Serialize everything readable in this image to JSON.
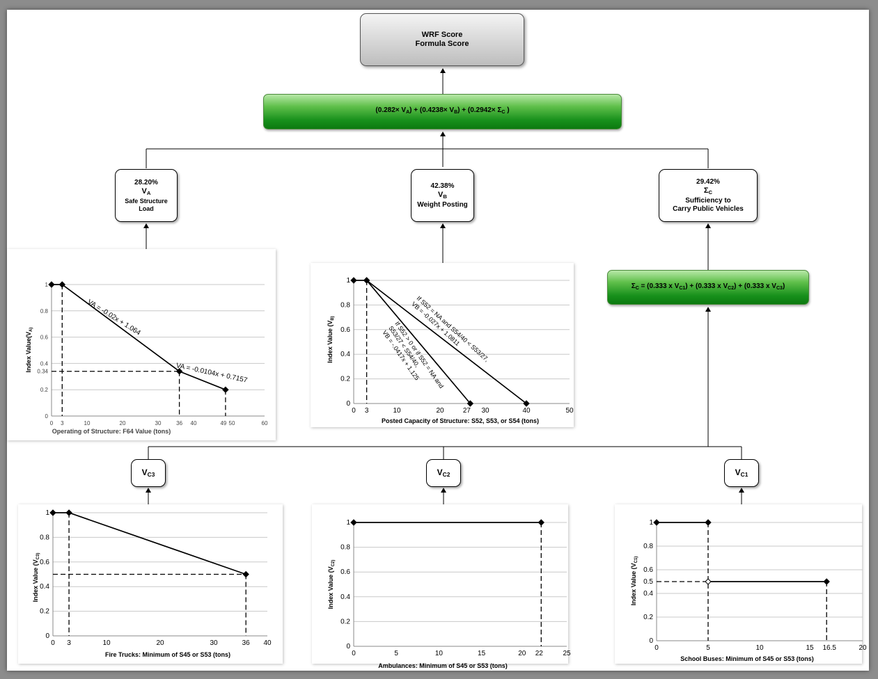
{
  "top_box": {
    "line1": "WRF Score",
    "line2": "Formula Score"
  },
  "main_formula": {
    "p1": "(0.282× V",
    "s1": "A",
    "p2": ") + (0.4238× V",
    "s2": "B",
    "p3": ") + (0.2942× Σ",
    "s3": "C",
    "p4": " )"
  },
  "box_a": {
    "pct": "28.20%",
    "sym": "V",
    "sub": "A",
    "label1": "Safe Structure",
    "label2": "Load"
  },
  "box_b": {
    "pct": "42.38%",
    "sym": "V",
    "sub": "B",
    "label1": "Weight Posting"
  },
  "box_c": {
    "pct": "29.42%",
    "sym": "Σ",
    "sub": "C",
    "label1": "Sufficiency to",
    "label2": "Carry Public Vehicles"
  },
  "sigma_formula": {
    "p1": "Σ",
    "s1": "C",
    "p2": " = (0.333 x V",
    "s2": "C1",
    "p3": ") + (0.333 x V",
    "s3": "C2",
    "p4": ") + (0.333 x V",
    "s4": "C3",
    "p5": ")"
  },
  "box_vc3": {
    "sym": "V",
    "sub": "C3"
  },
  "box_vc2": {
    "sym": "V",
    "sub": "C2"
  },
  "box_vc1": {
    "sym": "V",
    "sub": "C1"
  },
  "charts": {
    "va": {
      "ylabel": "Index Value(VA)",
      "xlabel": "Operating of Structure: F64 Value (tons)",
      "eq1": "VA = -0.02x + 1.064",
      "eq2": "VA = -0.0104x + 0.7157",
      "yticks": [
        "0",
        "0.2",
        "0.34",
        "0.4",
        "0.6",
        "0.8",
        "1"
      ],
      "xticks": [
        "0",
        "3",
        "10",
        "20",
        "30",
        "36",
        "40",
        "49",
        "50",
        "60"
      ]
    },
    "vb": {
      "ylabel": "Index Value (VB)",
      "xlabel": "Posted Capacity of Structure: S52, S53, or S54 (tons)",
      "eq1_l1": "If S52 = NA and S54/40 < S53/27,",
      "eq1_l2": "VB = -0.027x + 1.0811",
      "eq2_l1": "If S52 > 0 or if S52 = NA and",
      "eq2_l2": "S53/27 < S54/40,",
      "eq2_l3": "VB = -.0417x + 1.125",
      "yticks": [
        "0",
        "0.2",
        "0.4",
        "0.6",
        "0.8",
        "1"
      ],
      "xticks": [
        "0",
        "3",
        "10",
        "20",
        "27",
        "30",
        "40",
        "50"
      ]
    },
    "vc3": {
      "ylabel": "Index Value (VC3)",
      "xlabel": "Fire Trucks: Minimum of S45 or S53 (tons)",
      "yticks": [
        "0",
        "0.2",
        "0.4",
        "0.6",
        "0.8",
        "1"
      ],
      "xticks": [
        "0",
        "3",
        "10",
        "20",
        "30",
        "36",
        "40"
      ]
    },
    "vc2": {
      "ylabel": "Index Value (VC2)",
      "xlabel": "Ambulances: Minimum of S45 or S53 (tons)",
      "yticks": [
        "0",
        "0.2",
        "0.4",
        "0.6",
        "0.8",
        "1"
      ],
      "xticks": [
        "0",
        "5",
        "10",
        "15",
        "20",
        "22",
        "25"
      ]
    },
    "vc1": {
      "ylabel": "Index Value (VC1)",
      "xlabel": "School Buses: Minimum  of S45 or S53 (tons)",
      "yticks": [
        "0",
        "0.2",
        "0.4",
        "0.5",
        "0.6",
        "0.8",
        "1"
      ],
      "xticks": [
        "0",
        "5",
        "10",
        "15",
        "16.5",
        "20"
      ]
    }
  },
  "chart_data": [
    {
      "type": "line",
      "name": "VA",
      "x": [
        0,
        3,
        36,
        49
      ],
      "y": [
        1,
        1,
        0.34,
        0.2
      ],
      "xlim": [
        0,
        60
      ],
      "ylim": [
        0,
        1
      ]
    },
    {
      "type": "line",
      "name": "VB",
      "series": [
        {
          "x": [
            0,
            3,
            27
          ],
          "y": [
            1,
            1,
            0
          ]
        },
        {
          "x": [
            3,
            40
          ],
          "y": [
            1,
            0
          ]
        }
      ],
      "xlim": [
        0,
        50
      ],
      "ylim": [
        0,
        1
      ]
    },
    {
      "type": "line",
      "name": "VC3",
      "x": [
        0,
        3,
        36
      ],
      "y": [
        1,
        1,
        0.5
      ],
      "xlim": [
        0,
        40
      ],
      "ylim": [
        0,
        1
      ]
    },
    {
      "type": "line",
      "name": "VC2",
      "x": [
        0,
        22
      ],
      "y": [
        1,
        1
      ],
      "xlim": [
        0,
        25
      ],
      "ylim": [
        0,
        1
      ]
    },
    {
      "type": "line",
      "name": "VC1",
      "series": [
        {
          "x": [
            0,
            5
          ],
          "y": [
            1,
            1
          ]
        },
        {
          "x": [
            5,
            16.5
          ],
          "y": [
            0.5,
            0.5
          ]
        }
      ],
      "xlim": [
        0,
        20
      ],
      "ylim": [
        0,
        1
      ]
    }
  ]
}
